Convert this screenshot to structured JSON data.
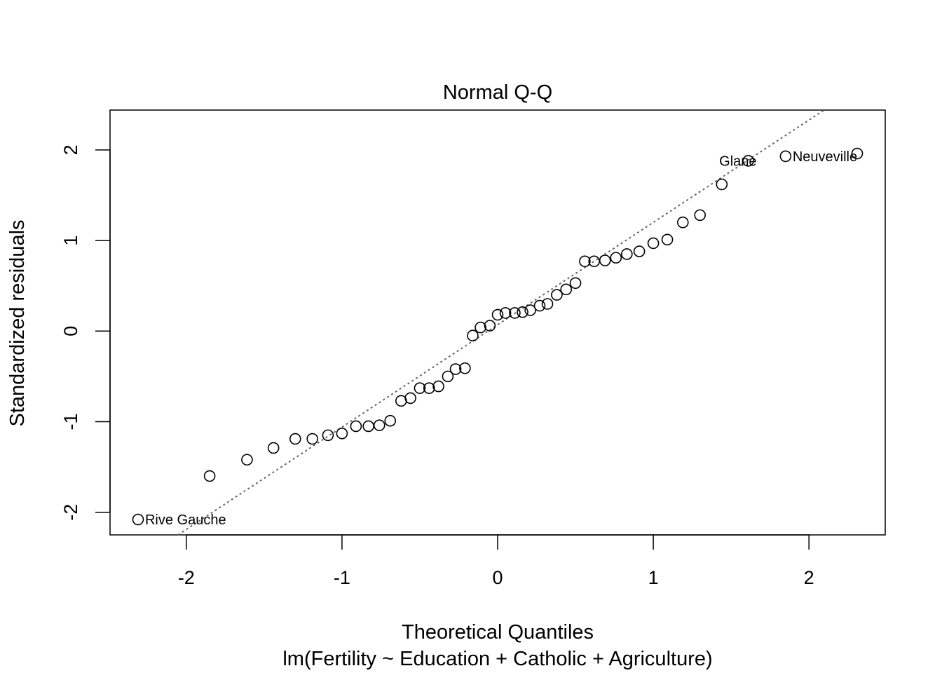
{
  "chart_data": {
    "type": "scatter",
    "title": "Normal Q-Q",
    "xlabel": "Theoretical Quantiles",
    "subtitle": "lm(Fertility ~ Education + Catholic + Agriculture)",
    "ylabel": "Standardized residuals",
    "xlim": [
      -2.49,
      2.49
    ],
    "ylim": [
      -2.25,
      2.44
    ],
    "x_ticks": [
      "-2",
      "-1",
      "0",
      "1",
      "2"
    ],
    "y_ticks": [
      "-2",
      "-1",
      "0",
      "1",
      "2"
    ],
    "reference_line": {
      "style": "dotted",
      "color": "#666666",
      "slope": 1.13,
      "intercept": 0.07
    },
    "marker": "open-circle",
    "points": [
      {
        "x": -2.31,
        "y": -2.08
      },
      {
        "x": -1.85,
        "y": -1.6
      },
      {
        "x": -1.61,
        "y": -1.42
      },
      {
        "x": -1.44,
        "y": -1.29
      },
      {
        "x": -1.3,
        "y": -1.19
      },
      {
        "x": -1.19,
        "y": -1.19
      },
      {
        "x": -1.09,
        "y": -1.15
      },
      {
        "x": -1.0,
        "y": -1.13
      },
      {
        "x": -0.91,
        "y": -1.05
      },
      {
        "x": -0.83,
        "y": -1.05
      },
      {
        "x": -0.76,
        "y": -1.04
      },
      {
        "x": -0.69,
        "y": -0.99
      },
      {
        "x": -0.62,
        "y": -0.77
      },
      {
        "x": -0.56,
        "y": -0.74
      },
      {
        "x": -0.5,
        "y": -0.63
      },
      {
        "x": -0.44,
        "y": -0.63
      },
      {
        "x": -0.38,
        "y": -0.61
      },
      {
        "x": -0.32,
        "y": -0.5
      },
      {
        "x": -0.27,
        "y": -0.42
      },
      {
        "x": -0.21,
        "y": -0.41
      },
      {
        "x": -0.16,
        "y": -0.05
      },
      {
        "x": -0.11,
        "y": 0.04
      },
      {
        "x": -0.05,
        "y": 0.06
      },
      {
        "x": 0.0,
        "y": 0.18
      },
      {
        "x": 0.05,
        "y": 0.2
      },
      {
        "x": 0.11,
        "y": 0.2
      },
      {
        "x": 0.16,
        "y": 0.21
      },
      {
        "x": 0.21,
        "y": 0.23
      },
      {
        "x": 0.27,
        "y": 0.28
      },
      {
        "x": 0.32,
        "y": 0.3
      },
      {
        "x": 0.38,
        "y": 0.4
      },
      {
        "x": 0.44,
        "y": 0.46
      },
      {
        "x": 0.5,
        "y": 0.53
      },
      {
        "x": 0.56,
        "y": 0.77
      },
      {
        "x": 0.62,
        "y": 0.77
      },
      {
        "x": 0.69,
        "y": 0.78
      },
      {
        "x": 0.76,
        "y": 0.81
      },
      {
        "x": 0.83,
        "y": 0.85
      },
      {
        "x": 0.91,
        "y": 0.88
      },
      {
        "x": 1.0,
        "y": 0.97
      },
      {
        "x": 1.09,
        "y": 1.01
      },
      {
        "x": 1.19,
        "y": 1.2
      },
      {
        "x": 1.3,
        "y": 1.28
      },
      {
        "x": 1.44,
        "y": 1.62
      },
      {
        "x": 1.61,
        "y": 1.88,
        "label": "Glane"
      },
      {
        "x": 1.85,
        "y": 1.93,
        "label": "Neuveville"
      },
      {
        "x": 2.31,
        "y": 1.96
      }
    ],
    "annotations": [
      {
        "text": "Rive Gauche",
        "x": -2.31,
        "y": -2.08,
        "anchor": "start"
      },
      {
        "text": "Glane",
        "x": 1.61,
        "y": 1.88,
        "anchor": "end"
      },
      {
        "text": "Neuveville",
        "x": 1.85,
        "y": 1.93,
        "anchor": "start"
      }
    ]
  }
}
